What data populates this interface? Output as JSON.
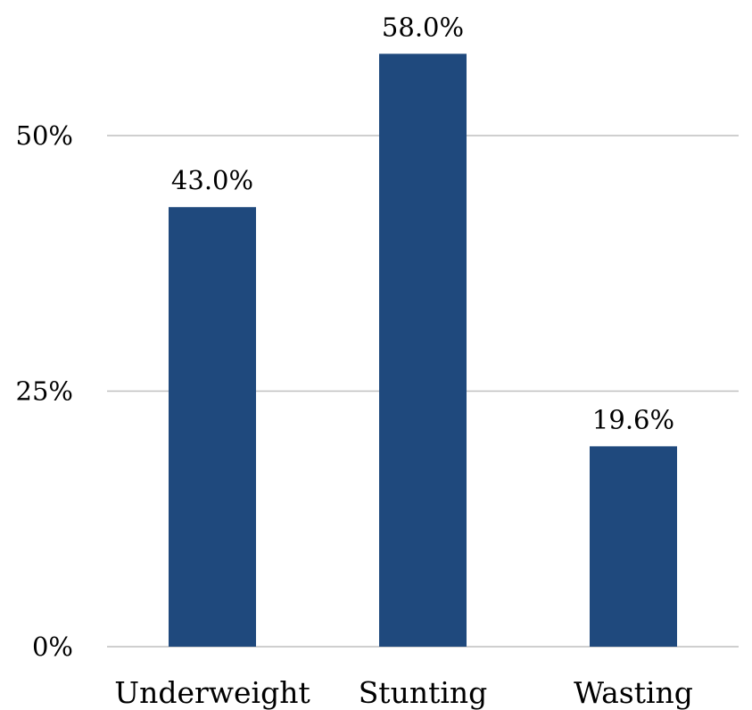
{
  "chart_data": {
    "type": "bar",
    "title": "",
    "xlabel": "",
    "ylabel": "",
    "categories": [
      "Underweight",
      "Stunting",
      "Wasting"
    ],
    "values": [
      43.0,
      58.0,
      19.6
    ],
    "value_labels": [
      "43.0%",
      "58.0%",
      "19.6%"
    ],
    "ylim": [
      0,
      60
    ],
    "yticks": [
      0,
      25,
      50
    ],
    "ytick_labels": [
      "0%",
      "25%",
      "50%"
    ],
    "grid": true,
    "legend": "none",
    "bar_color": "#1f497d",
    "grid_color": "#bfbfbf"
  }
}
